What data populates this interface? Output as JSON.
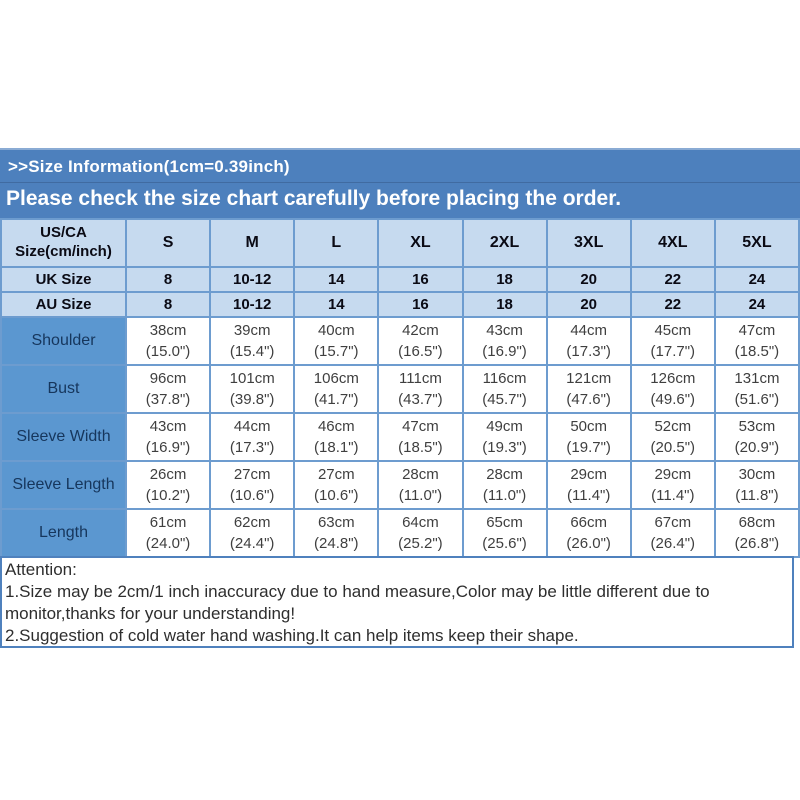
{
  "banner": {
    "title": ">>Size Information(1cm=0.39inch)",
    "subtitle": "Please check the size chart carefully before placing the order."
  },
  "table": {
    "corner_line1": "US/CA",
    "corner_line2": "Size(cm/inch)",
    "size_columns": [
      "S",
      "M",
      "L",
      "XL",
      "2XL",
      "3XL",
      "4XL",
      "5XL"
    ],
    "uk_row": {
      "label": "UK Size",
      "values": [
        "8",
        "10-12",
        "14",
        "16",
        "18",
        "20",
        "22",
        "24"
      ]
    },
    "au_row": {
      "label": "AU Size",
      "values": [
        "8",
        "10-12",
        "14",
        "16",
        "18",
        "20",
        "22",
        "24"
      ]
    },
    "measurement_rows": [
      {
        "label": "Shoulder",
        "cm": [
          "38cm",
          "39cm",
          "40cm",
          "42cm",
          "43cm",
          "44cm",
          "45cm",
          "47cm"
        ],
        "inch": [
          "(15.0\")",
          "(15.4\")",
          "(15.7\")",
          "(16.5\")",
          "(16.9\")",
          "(17.3\")",
          "(17.7\")",
          "(18.5\")"
        ]
      },
      {
        "label": "Bust",
        "cm": [
          "96cm",
          "101cm",
          "106cm",
          "111cm",
          "116cm",
          "121cm",
          "126cm",
          "131cm"
        ],
        "inch": [
          "(37.8\")",
          "(39.8\")",
          "(41.7\")",
          "(43.7\")",
          "(45.7\")",
          "(47.6\")",
          "(49.6\")",
          "(51.6\")"
        ]
      },
      {
        "label": "Sleeve Width",
        "cm": [
          "43cm",
          "44cm",
          "46cm",
          "47cm",
          "49cm",
          "50cm",
          "52cm",
          "53cm"
        ],
        "inch": [
          "(16.9\")",
          "(17.3\")",
          "(18.1\")",
          "(18.5\")",
          "(19.3\")",
          "(19.7\")",
          "(20.5\")",
          "(20.9\")"
        ]
      },
      {
        "label": "Sleeve Length",
        "cm": [
          "26cm",
          "27cm",
          "27cm",
          "28cm",
          "28cm",
          "29cm",
          "29cm",
          "30cm"
        ],
        "inch": [
          "(10.2\")",
          "(10.6\")",
          "(10.6\")",
          "(11.0\")",
          "(11.0\")",
          "(11.4\")",
          "(11.4\")",
          "(11.8\")"
        ]
      },
      {
        "label": "Length",
        "cm": [
          "61cm",
          "62cm",
          "63cm",
          "64cm",
          "65cm",
          "66cm",
          "67cm",
          "68cm"
        ],
        "inch": [
          "(24.0\")",
          "(24.4\")",
          "(24.8\")",
          "(25.2\")",
          "(25.6\")",
          "(26.0\")",
          "(26.4\")",
          "(26.8\")"
        ]
      }
    ]
  },
  "attention": {
    "title": "Attention:",
    "lines": [
      "1.Size may be 2cm/1 inch inaccuracy due to hand measure,Color may be little different due to monitor,thanks for your understanding!",
      "2.Suggestion of cold water hand washing.It can help items keep their shape."
    ]
  },
  "colors": {
    "banner_bg": "#4d80bd",
    "header_cell_bg": "#c6daef",
    "measure_label_bg": "#5b97d0",
    "cell_border": "#6d9ccf",
    "attention_border": "#4f81bd"
  }
}
